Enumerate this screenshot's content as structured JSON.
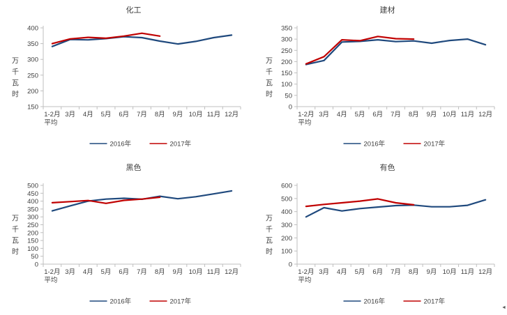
{
  "page": {
    "background": "#ffffff",
    "artifact_glyph": "◄"
  },
  "colors": {
    "series_2016": "#1F497D",
    "series_2017": "#C00000",
    "axis": "#BFBFBF",
    "text": "#404040"
  },
  "legend": {
    "items": [
      {
        "label": "2016年",
        "color": "#1F497D"
      },
      {
        "label": "2017年",
        "color": "#C00000"
      }
    ],
    "position": "bottom"
  },
  "chart_data": [
    {
      "type": "line",
      "title": "化工",
      "ylabel": "万千瓦时",
      "xlabel": "",
      "categories": [
        "1-2月平均",
        "3月",
        "4月",
        "5月",
        "6月",
        "7月",
        "8月",
        "9月",
        "10月",
        "11月",
        "12月"
      ],
      "x_first_label_lines": [
        "1-2月",
        "平均"
      ],
      "ylim": [
        150,
        400
      ],
      "ytick_step": 50,
      "grid": false,
      "legend_position": "bottom",
      "series": [
        {
          "name": "2016年",
          "color": "#1F497D",
          "values": [
            341,
            363,
            362,
            366,
            372,
            369,
            358,
            349,
            357,
            369,
            377
          ]
        },
        {
          "name": "2017年",
          "color": "#C00000",
          "values": [
            350,
            365,
            370,
            367,
            374,
            383,
            374
          ]
        }
      ]
    },
    {
      "type": "line",
      "title": "建材",
      "ylabel": "万千瓦时",
      "xlabel": "",
      "categories": [
        "1-2月平均",
        "3月",
        "4月",
        "5月",
        "6月",
        "7月",
        "8月",
        "9月",
        "10月",
        "11月",
        "12月"
      ],
      "x_first_label_lines": [
        "1-2月",
        "平均"
      ],
      "ylim": [
        0,
        350
      ],
      "ytick_step": 50,
      "grid": false,
      "legend_position": "bottom",
      "series": [
        {
          "name": "2016年",
          "color": "#1F497D",
          "values": [
            187,
            205,
            287,
            290,
            297,
            289,
            292,
            282,
            294,
            300,
            275
          ]
        },
        {
          "name": "2017年",
          "color": "#C00000",
          "values": [
            190,
            222,
            297,
            293,
            312,
            302,
            300
          ]
        }
      ]
    },
    {
      "type": "line",
      "title": "黑色",
      "ylabel": "万千瓦时",
      "xlabel": "",
      "categories": [
        "1-2月平均",
        "3月",
        "4月",
        "5月",
        "6月",
        "7月",
        "8月",
        "9月",
        "10月",
        "11月",
        "12月"
      ],
      "x_first_label_lines": [
        "1-2月",
        "平均"
      ],
      "ylim": [
        0,
        500
      ],
      "ytick_step": 50,
      "grid": false,
      "legend_position": "bottom",
      "series": [
        {
          "name": "2016年",
          "color": "#1F497D",
          "values": [
            338,
            370,
            400,
            413,
            418,
            412,
            431,
            415,
            428,
            446,
            465
          ]
        },
        {
          "name": "2017年",
          "color": "#C00000",
          "values": [
            390,
            397,
            404,
            386,
            405,
            413,
            425
          ]
        }
      ]
    },
    {
      "type": "line",
      "title": "有色",
      "ylabel": "万千瓦时",
      "xlabel": "",
      "categories": [
        "1-2月平均",
        "3月",
        "4月",
        "5月",
        "6月",
        "7月",
        "8月",
        "9月",
        "10月",
        "11月",
        "12月"
      ],
      "x_first_label_lines": [
        "1-2月",
        "平均"
      ],
      "ylim": [
        0,
        600
      ],
      "ytick_step": 100,
      "grid": false,
      "legend_position": "bottom",
      "series": [
        {
          "name": "2016年",
          "color": "#1F497D",
          "values": [
            360,
            430,
            405,
            423,
            435,
            446,
            450,
            437,
            437,
            448,
            490
          ]
        },
        {
          "name": "2017年",
          "color": "#C00000",
          "values": [
            440,
            455,
            467,
            480,
            497,
            467,
            452
          ]
        }
      ]
    }
  ]
}
